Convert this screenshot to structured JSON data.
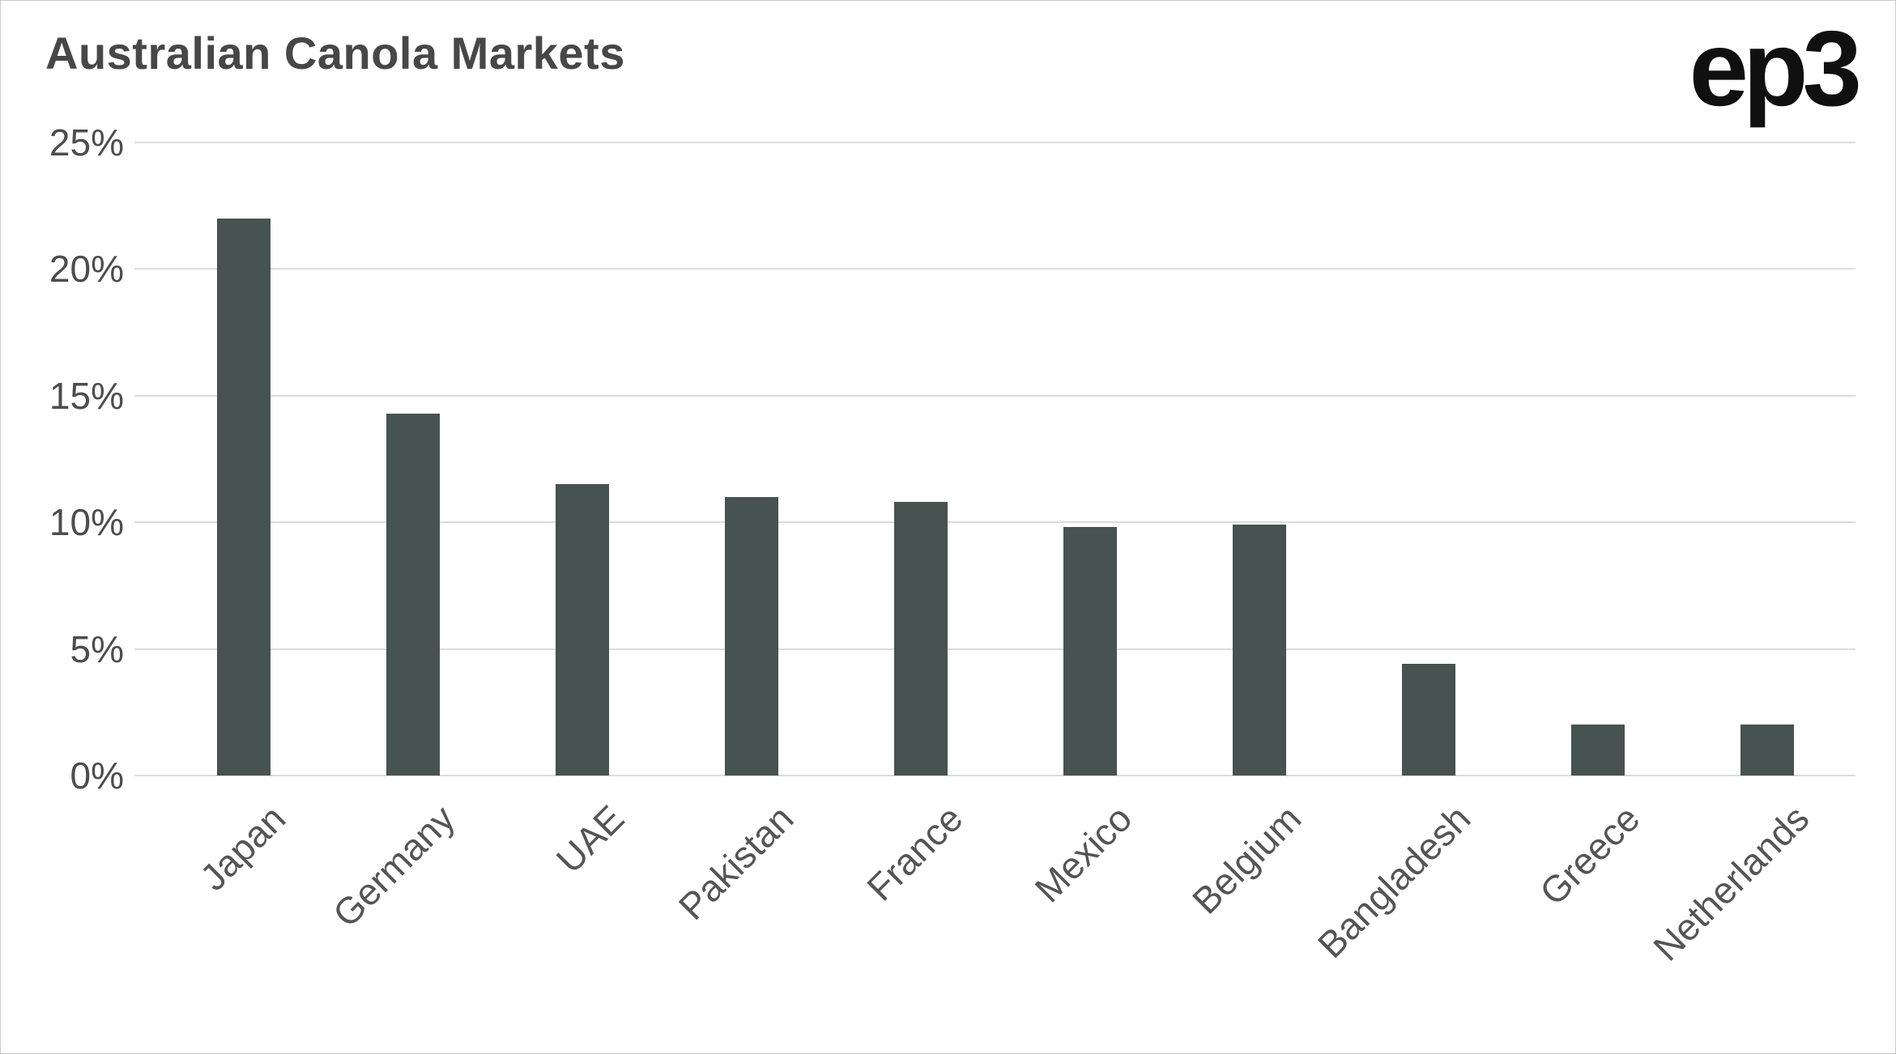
{
  "header": {
    "logo": "ep3"
  },
  "chart_data": {
    "type": "bar",
    "title": "Australian Canola Markets",
    "categories": [
      "Japan",
      "Germany",
      "UAE",
      "Pakistan",
      "France",
      "Mexico",
      "Belgium",
      "Bangladesh",
      "Greece",
      "Netherlands"
    ],
    "values": [
      22,
      14.3,
      11.5,
      11,
      10.8,
      9.8,
      9.9,
      4.4,
      2,
      2
    ],
    "xlabel": "",
    "ylabel": "",
    "ylim": [
      0,
      25
    ],
    "ytick_step": 5,
    "ytick_suffix": "%",
    "grid": "horizontal",
    "legend_position": "none",
    "bar_color": "#465350",
    "grid_color": "#dcdcdc",
    "title_color": "#474747",
    "tick_color": "#4d4d4d",
    "background_color": "#ffffff"
  }
}
